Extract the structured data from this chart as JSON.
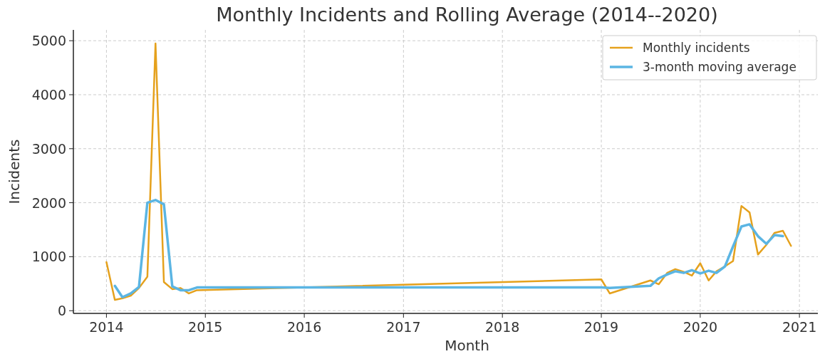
{
  "chart_data": {
    "type": "line",
    "title": "Monthly Incidents and Rolling Average (2014--2020)",
    "xlabel": "Month",
    "ylabel": "Incidents",
    "series": [
      {
        "name": "Monthly incidents",
        "color": "#e5a11c",
        "x": [
          "2014-01",
          "2014-02",
          "2014-03",
          "2014-04",
          "2014-05",
          "2014-06",
          "2014-07",
          "2014-08",
          "2014-09",
          "2014-10",
          "2014-11",
          "2014-12",
          "2019-01",
          "2019-02",
          "2019-07",
          "2019-08",
          "2019-09",
          "2019-10",
          "2019-11",
          "2019-12",
          "2020-01",
          "2020-02",
          "2020-03",
          "2020-04",
          "2020-05",
          "2020-06",
          "2020-07",
          "2020-08",
          "2020-09",
          "2020-10",
          "2020-11",
          "2020-12"
        ],
        "values": [
          900,
          200,
          230,
          280,
          420,
          630,
          4950,
          530,
          400,
          420,
          320,
          380,
          580,
          320,
          560,
          490,
          700,
          770,
          720,
          650,
          880,
          560,
          730,
          820,
          920,
          1940,
          1820,
          1040,
          1220,
          1440,
          1480,
          1200
        ]
      },
      {
        "name": "3-month moving average",
        "color": "#5bb5e3",
        "x": [
          "2014-02",
          "2014-03",
          "2014-04",
          "2014-05",
          "2014-06",
          "2014-07",
          "2014-08",
          "2014-09",
          "2014-10",
          "2014-11",
          "2014-12",
          "2019-01",
          "2019-02",
          "2019-07",
          "2019-08",
          "2019-09",
          "2019-10",
          "2019-11",
          "2019-12",
          "2020-01",
          "2020-02",
          "2020-03",
          "2020-04",
          "2020-05",
          "2020-06",
          "2020-07",
          "2020-08",
          "2020-09",
          "2020-10",
          "2020-11"
        ],
        "values": [
          460,
          250,
          320,
          440,
          2000,
          2050,
          1970,
          450,
          380,
          380,
          430,
          430,
          420,
          460,
          600,
          670,
          730,
          700,
          750,
          690,
          740,
          700,
          820,
          1190,
          1560,
          1600,
          1380,
          1240,
          1400,
          1380
        ]
      }
    ],
    "xlim": [
      "2013-09-01",
      "2021-03-10"
    ],
    "xticks": [
      "2014",
      "2015",
      "2016",
      "2017",
      "2018",
      "2019",
      "2020",
      "2021"
    ],
    "ylim": [
      -50,
      5200
    ],
    "yticks": [
      0,
      1000,
      2000,
      3000,
      4000,
      5000
    ],
    "grid": true,
    "legend": "top right",
    "line_style": "solid",
    "marker": "none"
  }
}
